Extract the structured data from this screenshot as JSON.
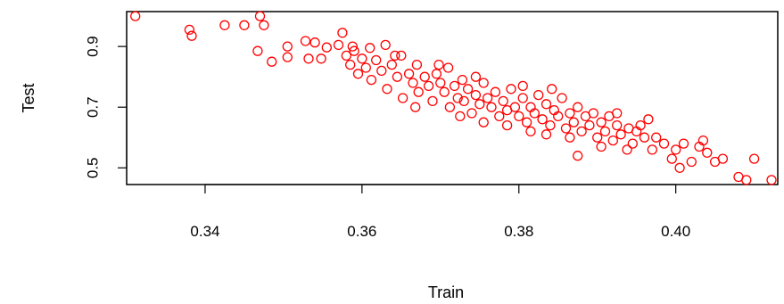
{
  "chart_data": {
    "type": "scatter",
    "title": "",
    "xlabel": "Train",
    "ylabel": "Test",
    "xlim": [
      0.33,
      0.413
    ],
    "ylim": [
      0.445,
      1.015
    ],
    "x_ticks": [
      "0.34",
      "0.36",
      "0.38",
      "0.40"
    ],
    "y_ticks": [
      "0.5",
      "0.7",
      "0.9"
    ],
    "grid": false,
    "legend": "none",
    "marker": "open-circle",
    "point_color": "#ff0000",
    "series": [
      {
        "points": [
          [
            0.3311,
            1.0
          ],
          [
            0.338,
            0.955
          ],
          [
            0.3383,
            0.935
          ],
          [
            0.3425,
            0.97
          ],
          [
            0.345,
            0.97
          ],
          [
            0.3467,
            0.885
          ],
          [
            0.347,
            1.0
          ],
          [
            0.3475,
            0.97
          ],
          [
            0.3485,
            0.85
          ],
          [
            0.3505,
            0.9
          ],
          [
            0.3505,
            0.865
          ],
          [
            0.3528,
            0.918
          ],
          [
            0.3532,
            0.86
          ],
          [
            0.354,
            0.913
          ],
          [
            0.3548,
            0.86
          ],
          [
            0.3555,
            0.897
          ],
          [
            0.357,
            0.905
          ],
          [
            0.3575,
            0.945
          ],
          [
            0.358,
            0.87
          ],
          [
            0.3585,
            0.84
          ],
          [
            0.359,
            0.885
          ],
          [
            0.3595,
            0.81
          ],
          [
            0.36,
            0.86
          ],
          [
            0.3605,
            0.83
          ],
          [
            0.361,
            0.895
          ],
          [
            0.3612,
            0.79
          ],
          [
            0.3618,
            0.855
          ],
          [
            0.3625,
            0.82
          ],
          [
            0.363,
            0.905
          ],
          [
            0.3632,
            0.76
          ],
          [
            0.3638,
            0.84
          ],
          [
            0.3645,
            0.8
          ],
          [
            0.365,
            0.87
          ],
          [
            0.3652,
            0.73
          ],
          [
            0.366,
            0.81
          ],
          [
            0.3665,
            0.78
          ],
          [
            0.367,
            0.84
          ],
          [
            0.3672,
            0.75
          ],
          [
            0.368,
            0.8
          ],
          [
            0.3685,
            0.77
          ],
          [
            0.369,
            0.72
          ],
          [
            0.3695,
            0.81
          ],
          [
            0.37,
            0.78
          ],
          [
            0.3705,
            0.75
          ],
          [
            0.371,
            0.83
          ],
          [
            0.3712,
            0.7
          ],
          [
            0.3718,
            0.77
          ],
          [
            0.3722,
            0.73
          ],
          [
            0.3728,
            0.79
          ],
          [
            0.373,
            0.72
          ],
          [
            0.3735,
            0.76
          ],
          [
            0.374,
            0.68
          ],
          [
            0.3745,
            0.74
          ],
          [
            0.375,
            0.71
          ],
          [
            0.3755,
            0.78
          ],
          [
            0.376,
            0.73
          ],
          [
            0.3765,
            0.7
          ],
          [
            0.377,
            0.75
          ],
          [
            0.3775,
            0.67
          ],
          [
            0.378,
            0.72
          ],
          [
            0.3785,
            0.69
          ],
          [
            0.379,
            0.76
          ],
          [
            0.3795,
            0.7
          ],
          [
            0.38,
            0.67
          ],
          [
            0.3805,
            0.73
          ],
          [
            0.381,
            0.65
          ],
          [
            0.3815,
            0.7
          ],
          [
            0.382,
            0.68
          ],
          [
            0.3825,
            0.74
          ],
          [
            0.383,
            0.66
          ],
          [
            0.3835,
            0.71
          ],
          [
            0.384,
            0.64
          ],
          [
            0.3845,
            0.69
          ],
          [
            0.385,
            0.67
          ],
          [
            0.3855,
            0.73
          ],
          [
            0.386,
            0.63
          ],
          [
            0.3865,
            0.68
          ],
          [
            0.387,
            0.65
          ],
          [
            0.3875,
            0.7
          ],
          [
            0.388,
            0.62
          ],
          [
            0.3885,
            0.67
          ],
          [
            0.389,
            0.64
          ],
          [
            0.3895,
            0.68
          ],
          [
            0.39,
            0.6
          ],
          [
            0.3905,
            0.65
          ],
          [
            0.391,
            0.62
          ],
          [
            0.3915,
            0.67
          ],
          [
            0.392,
            0.59
          ],
          [
            0.3925,
            0.64
          ],
          [
            0.393,
            0.61
          ],
          [
            0.394,
            0.63
          ],
          [
            0.3945,
            0.58
          ],
          [
            0.395,
            0.62
          ],
          [
            0.396,
            0.6
          ],
          [
            0.3965,
            0.66
          ],
          [
            0.397,
            0.56
          ],
          [
            0.3975,
            0.6
          ],
          [
            0.3985,
            0.58
          ],
          [
            0.3995,
            0.53
          ],
          [
            0.4,
            0.56
          ],
          [
            0.4005,
            0.5
          ],
          [
            0.401,
            0.58
          ],
          [
            0.402,
            0.52
          ],
          [
            0.403,
            0.57
          ],
          [
            0.4035,
            0.59
          ],
          [
            0.404,
            0.55
          ],
          [
            0.405,
            0.52
          ],
          [
            0.406,
            0.53
          ],
          [
            0.408,
            0.47
          ],
          [
            0.409,
            0.46
          ],
          [
            0.41,
            0.53
          ],
          [
            0.4122,
            0.46
          ],
          [
            0.3875,
            0.54
          ],
          [
            0.3785,
            0.64
          ],
          [
            0.3725,
            0.67
          ],
          [
            0.3668,
            0.7
          ],
          [
            0.3835,
            0.61
          ],
          [
            0.3905,
            0.57
          ],
          [
            0.3755,
            0.65
          ],
          [
            0.3805,
            0.77
          ],
          [
            0.3745,
            0.8
          ],
          [
            0.3842,
            0.76
          ],
          [
            0.3698,
            0.84
          ],
          [
            0.3642,
            0.87
          ],
          [
            0.3588,
            0.9
          ],
          [
            0.3925,
            0.68
          ],
          [
            0.3955,
            0.64
          ],
          [
            0.3938,
            0.56
          ],
          [
            0.3865,
            0.6
          ],
          [
            0.3815,
            0.62
          ]
        ]
      }
    ]
  }
}
